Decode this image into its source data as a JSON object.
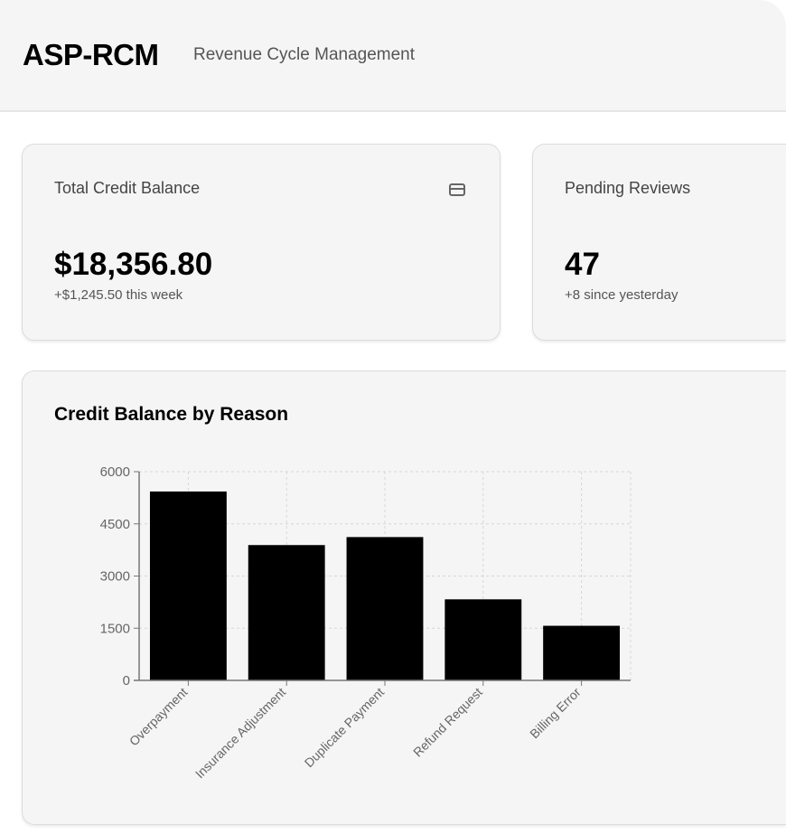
{
  "header": {
    "brand": "ASP-RCM",
    "subtitle": "Revenue Cycle Management"
  },
  "cards": [
    {
      "title": "Total Credit Balance",
      "value": "$18,356.80",
      "sub": "+$1,245.50 this week",
      "icon": "credit-card-icon"
    },
    {
      "title": "Pending Reviews",
      "value": "47",
      "sub": "+8 since yesterday"
    }
  ],
  "chart_card": {
    "title": "Credit Balance by Reason"
  },
  "chart_data": {
    "type": "bar",
    "title": "Credit Balance by Reason",
    "categories": [
      "Overpayment",
      "Insurance Adjustment",
      "Duplicate Payment",
      "Refund Request",
      "Billing Error"
    ],
    "values": [
      5430,
      3890,
      4120,
      2330,
      1570
    ],
    "ylim": [
      0,
      6000
    ],
    "yticks": [
      "0",
      "1500",
      "3000",
      "4500",
      "6000"
    ],
    "grid": true,
    "bar_color": "#000000",
    "xlabel": "",
    "ylabel": ""
  }
}
